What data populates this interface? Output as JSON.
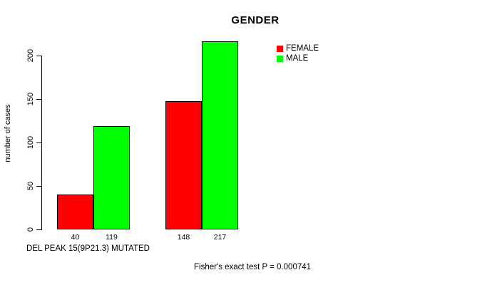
{
  "chart_data": {
    "type": "bar",
    "title": "GENDER",
    "xlabel": "",
    "ylabel": "number of cases",
    "ylim": [
      0,
      200
    ],
    "yticks": [
      0,
      50,
      100,
      150,
      200
    ],
    "grid": false,
    "legend_position": "top-right",
    "groups_count": 2,
    "series": [
      {
        "name": "FEMALE",
        "color": "#ff0000",
        "values": [
          40,
          148
        ]
      },
      {
        "name": "MALE",
        "color": "#00ff00",
        "values": [
          119,
          217
        ]
      }
    ]
  },
  "annotations": {
    "group_label": "DEL PEAK 15(9P21.3) MUTATED",
    "stats_note": "Fisher's exact test P = 0.000741"
  },
  "colors": {
    "female": "#ff0000",
    "male": "#00ff00",
    "axis": "#000000",
    "background": "#ffffff"
  }
}
